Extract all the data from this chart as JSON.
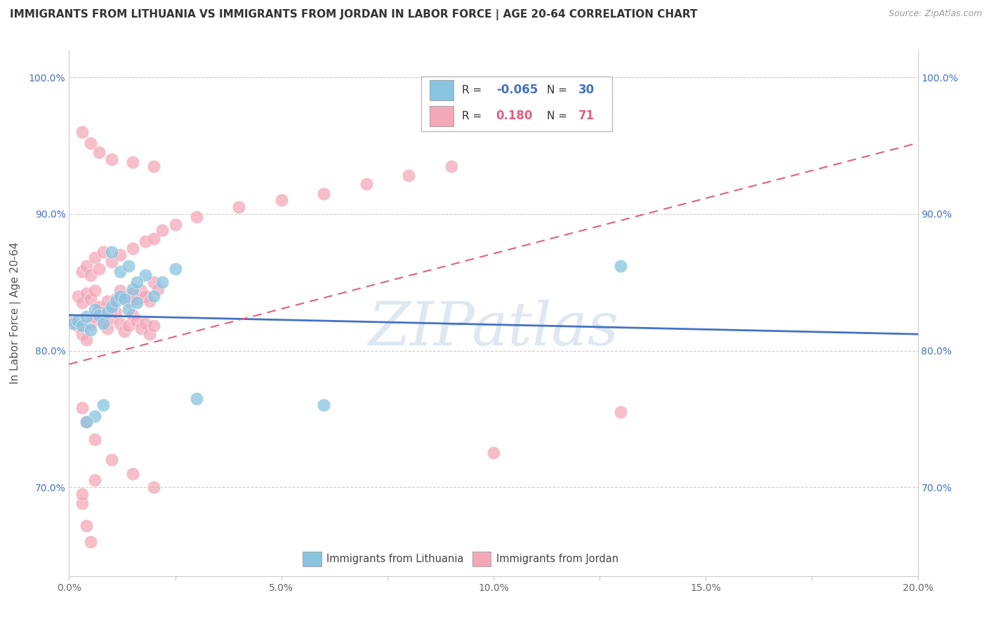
{
  "title": "IMMIGRANTS FROM LITHUANIA VS IMMIGRANTS FROM JORDAN IN LABOR FORCE | AGE 20-64 CORRELATION CHART",
  "source": "Source: ZipAtlas.com",
  "ylabel": "In Labor Force | Age 20-64",
  "legend_label1": "Immigrants from Lithuania",
  "legend_label2": "Immigrants from Jordan",
  "R1": -0.065,
  "N1": 30,
  "R2": 0.18,
  "N2": 71,
  "xlim": [
    0.0,
    0.2
  ],
  "ylim": [
    0.635,
    1.02
  ],
  "yticks": [
    0.7,
    0.8,
    0.9,
    1.0
  ],
  "ytick_labels": [
    "70.0%",
    "80.0%",
    "90.0%",
    "100.0%"
  ],
  "xticks": [
    0.0,
    0.025,
    0.05,
    0.075,
    0.1,
    0.125,
    0.15,
    0.175,
    0.2
  ],
  "xtick_labels": [
    "0.0%",
    "",
    "5.0%",
    "",
    "10.0%",
    "",
    "15.0%",
    "",
    "20.0%"
  ],
  "color1": "#89C4E1",
  "color2": "#F4A7B9",
  "trendline_color1": "#4472C4",
  "trendline_color2": "#E06080",
  "watermark": "ZIPatlas",
  "watermark_color": "#C5D5E5",
  "blue_x": [
    0.001,
    0.002,
    0.003,
    0.004,
    0.005,
    0.006,
    0.007,
    0.008,
    0.009,
    0.01,
    0.011,
    0.012,
    0.013,
    0.014,
    0.015,
    0.016,
    0.018,
    0.02,
    0.022,
    0.025,
    0.01,
    0.012,
    0.014,
    0.016,
    0.008,
    0.006,
    0.004,
    0.03,
    0.06,
    0.13
  ],
  "blue_y": [
    0.82,
    0.822,
    0.818,
    0.825,
    0.815,
    0.83,
    0.826,
    0.82,
    0.828,
    0.832,
    0.836,
    0.84,
    0.838,
    0.83,
    0.845,
    0.835,
    0.855,
    0.84,
    0.85,
    0.86,
    0.872,
    0.858,
    0.862,
    0.85,
    0.76,
    0.752,
    0.748,
    0.765,
    0.76,
    0.862
  ],
  "pink_x": [
    0.001,
    0.002,
    0.003,
    0.004,
    0.005,
    0.006,
    0.007,
    0.008,
    0.009,
    0.01,
    0.011,
    0.012,
    0.013,
    0.014,
    0.015,
    0.016,
    0.017,
    0.018,
    0.019,
    0.02,
    0.002,
    0.003,
    0.004,
    0.005,
    0.006,
    0.007,
    0.008,
    0.009,
    0.01,
    0.011,
    0.012,
    0.013,
    0.014,
    0.015,
    0.016,
    0.017,
    0.018,
    0.019,
    0.02,
    0.021,
    0.003,
    0.004,
    0.005,
    0.006,
    0.007,
    0.008,
    0.01,
    0.012,
    0.015,
    0.018,
    0.02,
    0.022,
    0.025,
    0.03,
    0.04,
    0.05,
    0.06,
    0.07,
    0.08,
    0.09,
    0.003,
    0.005,
    0.007,
    0.01,
    0.015,
    0.02,
    0.003,
    0.004,
    0.006,
    0.13,
    0.1
  ],
  "pink_y": [
    0.822,
    0.818,
    0.812,
    0.808,
    0.82,
    0.825,
    0.83,
    0.822,
    0.816,
    0.824,
    0.828,
    0.82,
    0.814,
    0.818,
    0.826,
    0.822,
    0.816,
    0.82,
    0.812,
    0.818,
    0.84,
    0.835,
    0.842,
    0.838,
    0.844,
    0.832,
    0.828,
    0.836,
    0.83,
    0.838,
    0.844,
    0.84,
    0.836,
    0.842,
    0.838,
    0.844,
    0.84,
    0.836,
    0.85,
    0.845,
    0.858,
    0.862,
    0.855,
    0.868,
    0.86,
    0.872,
    0.865,
    0.87,
    0.875,
    0.88,
    0.882,
    0.888,
    0.892,
    0.898,
    0.905,
    0.91,
    0.915,
    0.922,
    0.928,
    0.935,
    0.96,
    0.952,
    0.945,
    0.94,
    0.938,
    0.935,
    0.758,
    0.748,
    0.735,
    0.755,
    0.725
  ],
  "pink_extra_x": [
    0.003,
    0.004,
    0.005,
    0.01,
    0.015,
    0.02,
    0.003,
    0.006
  ],
  "pink_extra_y": [
    0.688,
    0.672,
    0.66,
    0.72,
    0.71,
    0.7,
    0.695,
    0.705
  ],
  "blue_trendline_x": [
    0.0,
    0.2
  ],
  "blue_trendline_y": [
    0.826,
    0.812
  ],
  "pink_trendline_x": [
    0.0,
    0.2
  ],
  "pink_trendline_y": [
    0.79,
    0.952
  ]
}
